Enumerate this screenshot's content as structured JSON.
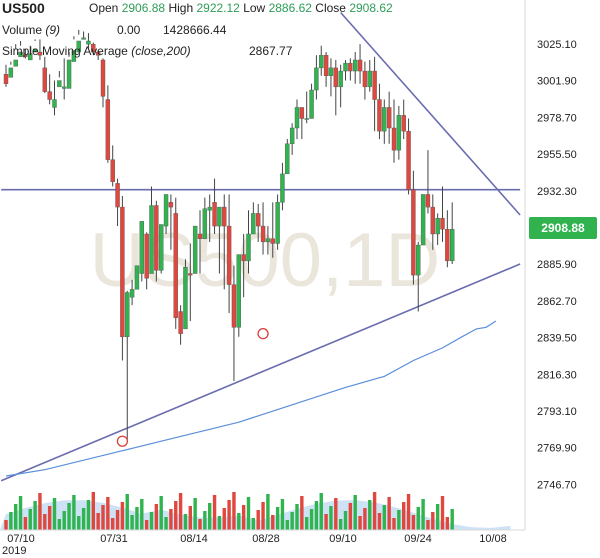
{
  "header": {
    "symbol": "US500",
    "open_label": "Open",
    "open_value": "2906.88",
    "high_label": "High",
    "high_value": "2922.12",
    "low_label": "Low",
    "low_value": "2886.62",
    "close_label": "Close",
    "close_value": "2908.62",
    "volume_label": "Volume",
    "volume_param": "(9)",
    "volume_value_1": "0.00",
    "volume_value_2": "1428666.44",
    "sma_label": "Simple Moving Average",
    "sma_param": "(close,200)",
    "sma_value": "2867.77"
  },
  "watermark": "US500,1D",
  "last_price": "2908.88",
  "colors": {
    "up": "#2fb44f",
    "down": "#e0473f",
    "sma": "#5b8fd8",
    "trend": "#6a6cb0",
    "volume_area": "#b9d6f2"
  },
  "chart_data": {
    "type": "candlestick",
    "ylim": [
      2750,
      3045
    ],
    "y_ticks": [
      "3025.10",
      "3001.90",
      "2978.70",
      "2955.50",
      "2932.30",
      "2909.10",
      "2885.90",
      "2862.70",
      "2839.50",
      "2816.30",
      "2793.10",
      "2769.90",
      "2746.70"
    ],
    "x_ticks": [
      "07/10",
      "07/31",
      "08/14",
      "08/28",
      "09/10",
      "09/24",
      "10/08"
    ],
    "x_sub_label": "2019",
    "candles": [
      [
        3006,
        3012,
        3000,
        2998
      ],
      [
        3004,
        3012,
        3010,
        3014
      ],
      [
        3011,
        3022,
        3015,
        3025
      ],
      [
        3017,
        3024,
        3020,
        3027
      ],
      [
        3018,
        3022,
        3017,
        3016
      ],
      [
        3015,
        3018,
        3019,
        3024
      ],
      [
        3020,
        3027,
        3022,
        3028
      ],
      [
        3020,
        3028,
        3018,
        3015
      ],
      [
        3010,
        3017,
        2995,
        2994
      ],
      [
        2995,
        3006,
        2990,
        2987
      ],
      [
        2985,
        3002,
        2990,
        2980
      ],
      [
        2998,
        3004,
        3002,
        3008
      ],
      [
        2997,
        3016,
        2998,
        2990
      ],
      [
        2997,
        3017,
        3015,
        3020
      ],
      [
        3014,
        3028,
        3021,
        3030
      ],
      [
        3020,
        3031,
        3027,
        3034
      ],
      [
        3028,
        3029,
        3029,
        3033
      ],
      [
        3025,
        3032,
        3027,
        3022
      ],
      [
        3025,
        3026,
        3020,
        3018
      ],
      [
        3020,
        3021,
        3018,
        3015
      ],
      [
        3015,
        3016,
        2992,
        2985
      ],
      [
        2990,
        2999,
        2952,
        2950
      ],
      [
        2952,
        2961,
        2938,
        2935
      ],
      [
        2937,
        2940,
        2922,
        2910
      ],
      [
        2922,
        2929,
        2840,
        2825
      ],
      [
        2840,
        2869,
        2868,
        2775
      ],
      [
        2865,
        2876,
        2870,
        2860
      ],
      [
        2870,
        2880,
        2885,
        2880
      ],
      [
        2880,
        2890,
        2913,
        2875
      ],
      [
        2905,
        2906,
        2877,
        2870
      ],
      [
        2880,
        2935,
        2923,
        2921
      ],
      [
        2923,
        2926,
        2882,
        2875
      ],
      [
        2882,
        2900,
        2911,
        2880
      ],
      [
        2910,
        2930,
        2930,
        2905
      ],
      [
        2925,
        2930,
        2922,
        2895
      ],
      [
        2918,
        2928,
        2852,
        2845
      ],
      [
        2856,
        2860,
        2842,
        2835
      ],
      [
        2845,
        2889,
        2884,
        2880
      ],
      [
        2880,
        2899,
        2879,
        2850
      ],
      [
        2880,
        2905,
        2910,
        2910
      ],
      [
        2905,
        2920,
        2902,
        2880
      ],
      [
        2902,
        2928,
        2921,
        2915
      ],
      [
        2920,
        2930,
        2922,
        2900
      ],
      [
        2925,
        2940,
        2910,
        2905
      ],
      [
        2910,
        2915,
        2922,
        2880
      ],
      [
        2922,
        2930,
        2910,
        2870
      ],
      [
        2910,
        2930,
        2873,
        2855
      ],
      [
        2873,
        2885,
        2846,
        2812
      ],
      [
        2846,
        2875,
        2892,
        2840
      ],
      [
        2892,
        2905,
        2888,
        2865
      ],
      [
        2888,
        2920,
        2905,
        2880
      ],
      [
        2905,
        2925,
        2918,
        2905
      ],
      [
        2918,
        2924,
        2910,
        2900
      ],
      [
        2910,
        2925,
        2900,
        2892
      ],
      [
        2900,
        2910,
        2902,
        2892
      ],
      [
        2902,
        2925,
        2899,
        2890
      ],
      [
        2899,
        2930,
        2925,
        2895
      ],
      [
        2925,
        2950,
        2943,
        2920
      ],
      [
        2943,
        2965,
        2962,
        2955
      ],
      [
        2962,
        2975,
        2972,
        2955
      ],
      [
        2972,
        2990,
        2985,
        2965
      ],
      [
        2985,
        2982,
        2978,
        2965
      ],
      [
        2978,
        2995,
        2978,
        2975
      ],
      [
        2978,
        3000,
        2996,
        2985
      ],
      [
        2996,
        3018,
        3010,
        2990
      ],
      [
        3010,
        3024,
        3018,
        3005
      ],
      [
        3018,
        3020,
        3005,
        2998
      ],
      [
        3005,
        3016,
        3010,
        2992
      ],
      [
        3010,
        3015,
        2998,
        2980
      ],
      [
        2998,
        3012,
        3008,
        2985
      ],
      [
        3008,
        3015,
        3013,
        3002
      ],
      [
        3013,
        3016,
        3008,
        3002
      ],
      [
        3008,
        3020,
        3015,
        3000
      ],
      [
        3015,
        3025,
        3008,
        3000
      ],
      [
        3008,
        3014,
        2998,
        2990
      ],
      [
        2998,
        3015,
        3008,
        2995
      ],
      [
        3008,
        3017,
        2990,
        2970
      ],
      [
        2990,
        3000,
        2970,
        2965
      ],
      [
        2970,
        2990,
        2985,
        2962
      ],
      [
        2985,
        2995,
        2972,
        2962
      ],
      [
        2972,
        2990,
        2958,
        2950
      ],
      [
        2958,
        2986,
        2980,
        2952
      ],
      [
        2980,
        2990,
        2970,
        2965
      ],
      [
        2970,
        2978,
        2933,
        2930
      ],
      [
        2933,
        2945,
        2879,
        2873
      ],
      [
        2879,
        2900,
        2898,
        2856
      ],
      [
        2898,
        2925,
        2930,
        2900
      ],
      [
        2930,
        2958,
        2922,
        2918
      ],
      [
        2922,
        2930,
        2905,
        2895
      ],
      [
        2905,
        2918,
        2915,
        2898
      ],
      [
        2915,
        2935,
        2908,
        2900
      ],
      [
        2908,
        2920,
        2888,
        2884
      ],
      [
        2888,
        2925,
        2908,
        2886
      ]
    ],
    "sma": [
      [
        0,
        2752
      ],
      [
        8,
        2756
      ],
      [
        16,
        2762
      ],
      [
        24,
        2768
      ],
      [
        32,
        2774
      ],
      [
        40,
        2780
      ],
      [
        48,
        2786
      ],
      [
        56,
        2794
      ],
      [
        62,
        2800
      ],
      [
        70,
        2808
      ],
      [
        78,
        2815
      ],
      [
        84,
        2825
      ],
      [
        90,
        2833
      ],
      [
        94,
        2840
      ],
      [
        97,
        2845
      ],
      [
        99,
        2846
      ],
      [
        100,
        2848
      ],
      [
        101,
        2850
      ]
    ],
    "trendlines": [
      {
        "from": [
          -1,
          2749
        ],
        "to": [
          106,
          2886
        ]
      },
      {
        "from": [
          -1,
          2933
        ],
        "to": [
          106,
          2933
        ]
      },
      {
        "from": [
          69,
          3045
        ],
        "to": [
          106,
          2917
        ]
      }
    ],
    "markers": [
      [
        24,
        2774
      ],
      [
        53,
        2842
      ]
    ]
  }
}
